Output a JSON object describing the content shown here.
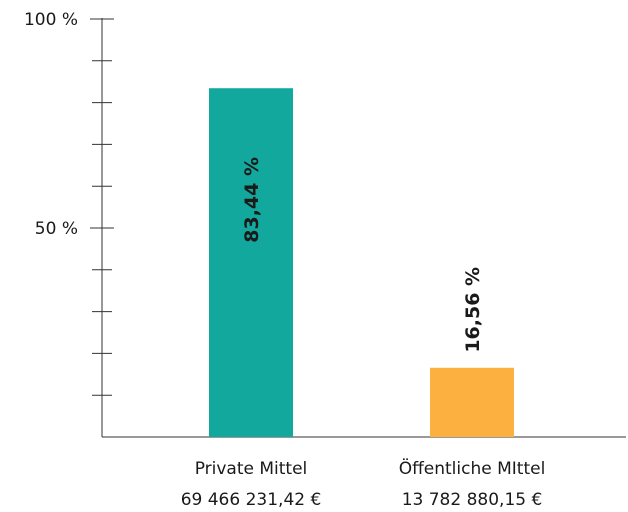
{
  "chart_data": {
    "type": "bar",
    "categories": [
      "Private Mittel",
      "Öffentliche MIttel"
    ],
    "sublabels": [
      "69 466 231,42 €",
      "13 782 880,15 €"
    ],
    "values": [
      83.44,
      16.56
    ],
    "data_labels": [
      "83,44 %",
      "16,56 %"
    ],
    "colors": [
      "#13a89e",
      "#fbb040"
    ],
    "ylim": [
      0,
      100
    ],
    "y_tick_step": 10,
    "y_tick_labels": [
      {
        "value": 50,
        "label": "50 %"
      },
      {
        "value": 100,
        "label": "100 %"
      }
    ],
    "grid": false,
    "legend": "none"
  }
}
